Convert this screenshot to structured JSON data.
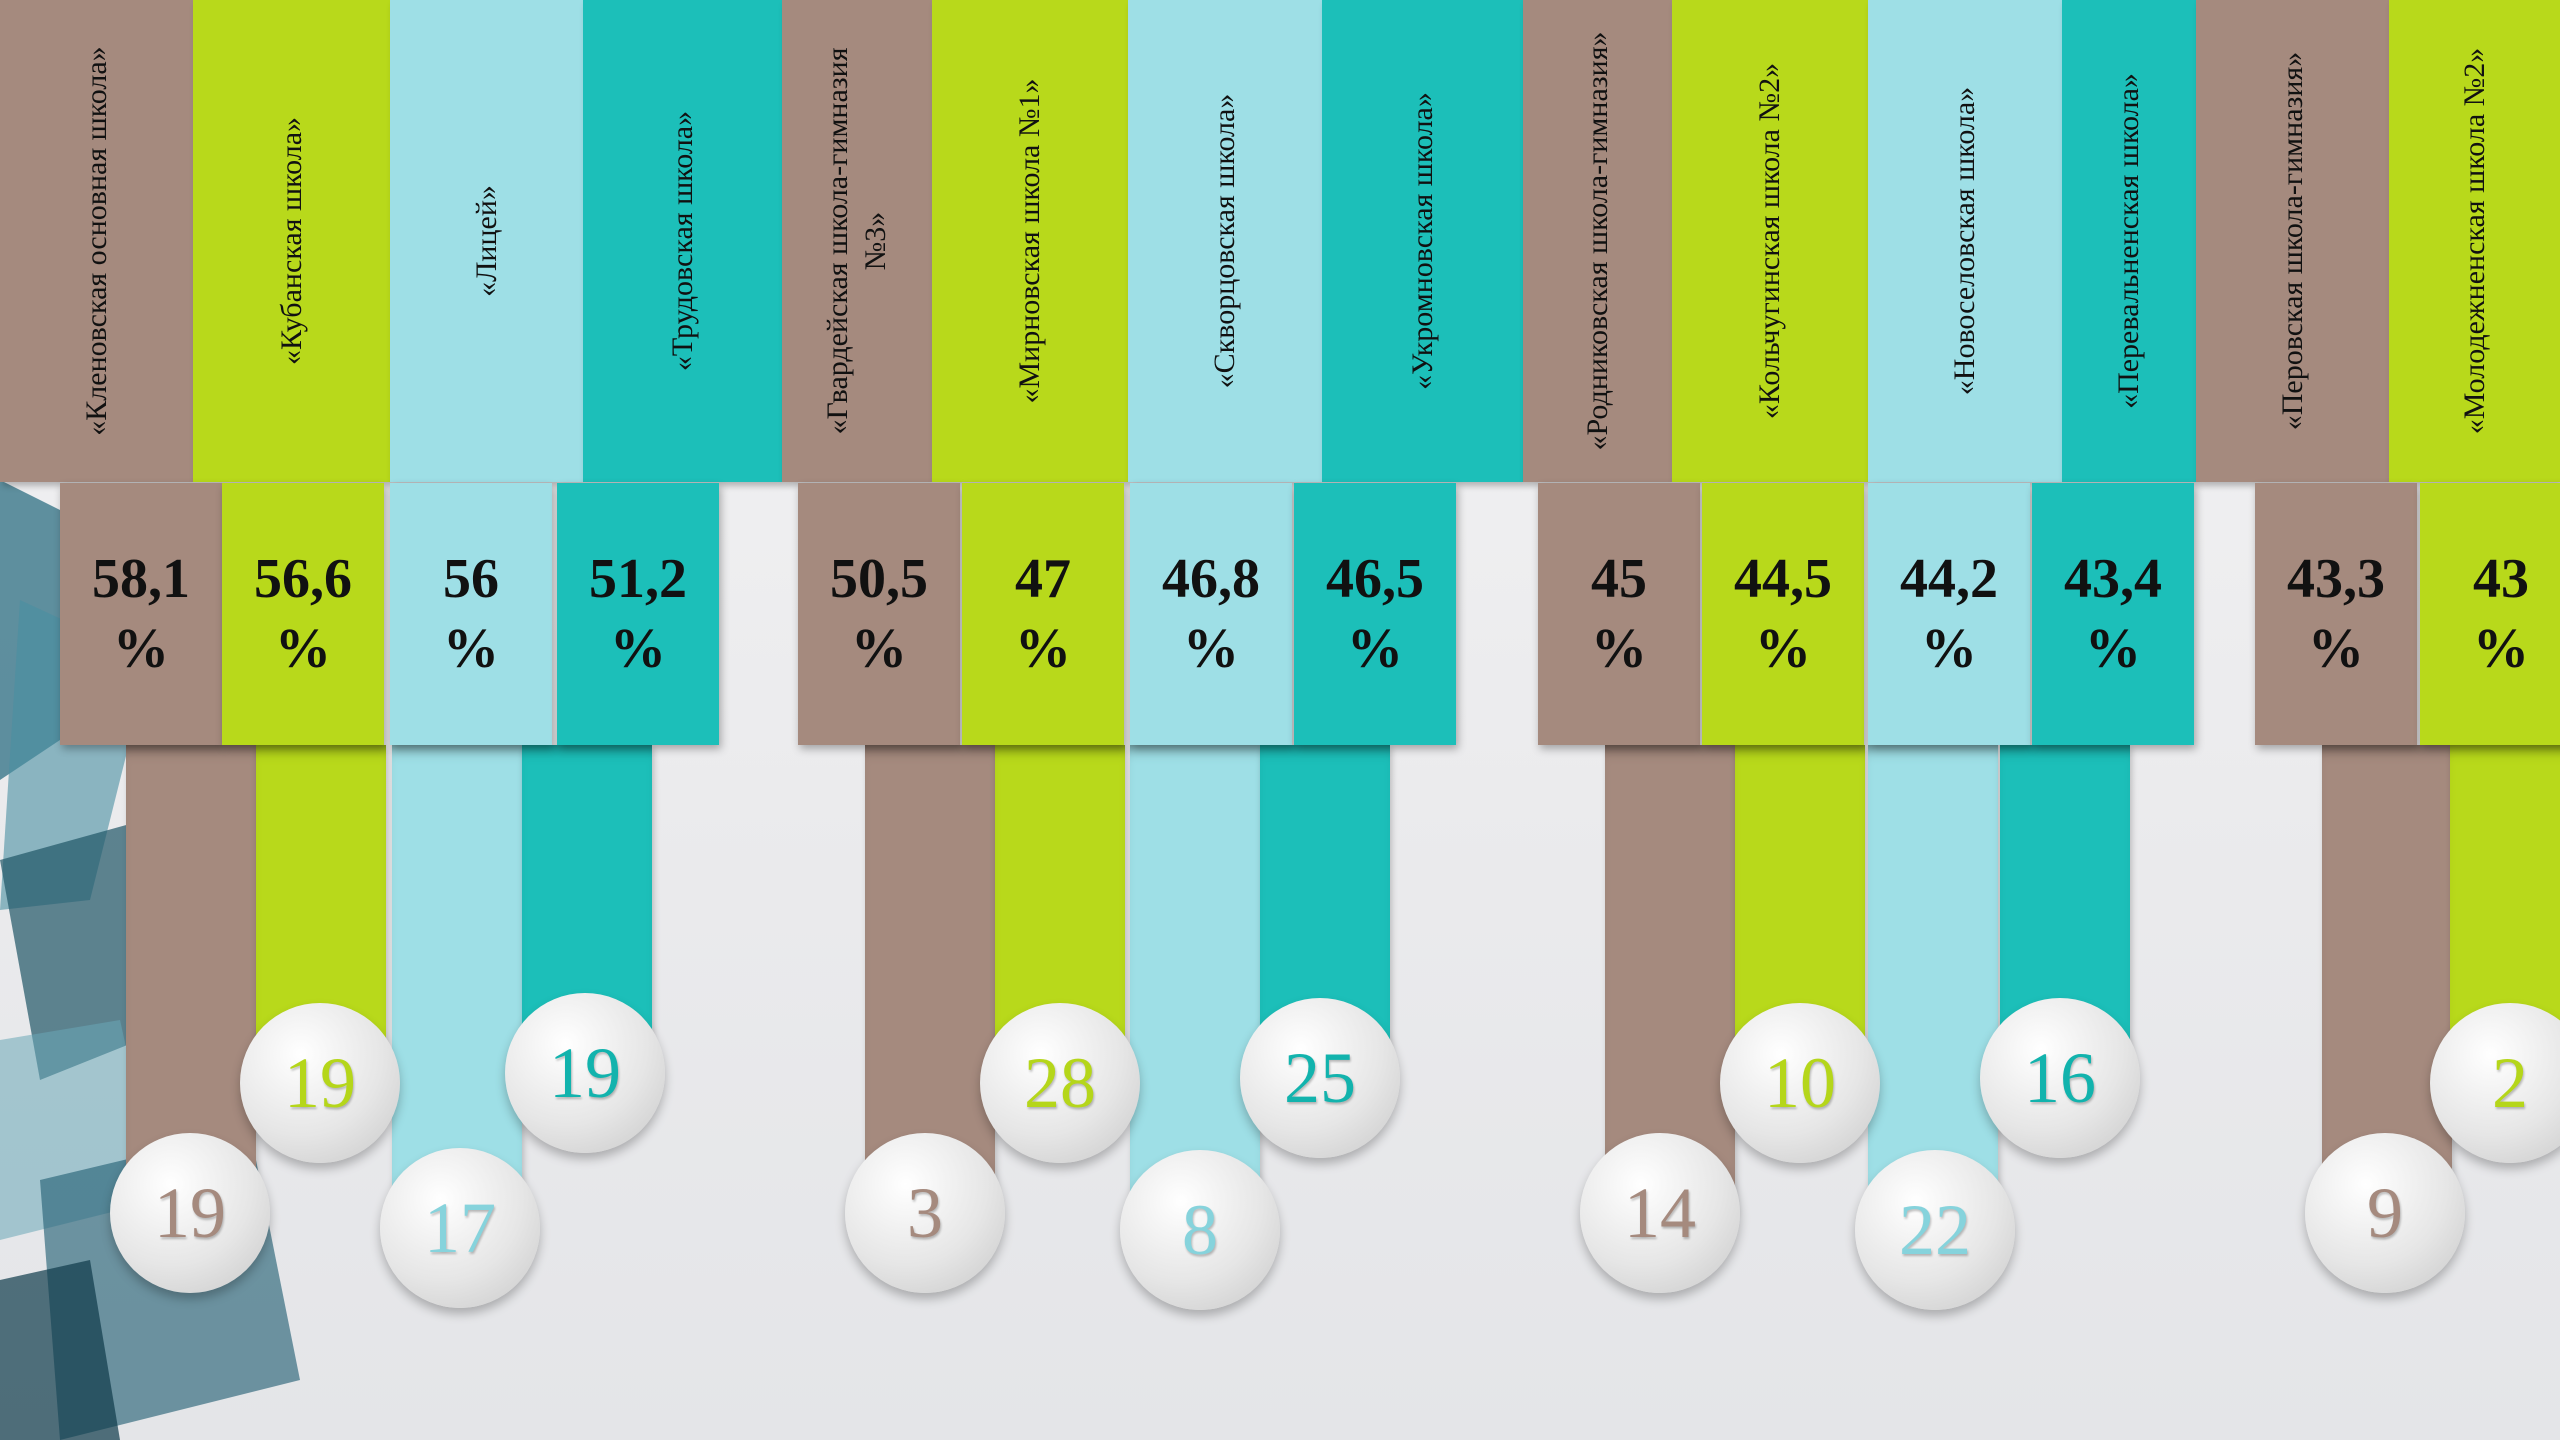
{
  "colors": {
    "brown": "#a58a7e",
    "lime": "#b8d91b",
    "light_blue": "#9edfe6",
    "teal": "#1cbfb9",
    "circle_text_brown": "#a58a7e",
    "circle_text_lime": "#b5d61a",
    "circle_text_light_blue": "#86d3dc",
    "circle_text_teal": "#12b3ad"
  },
  "chart_data": {
    "type": "bar",
    "title": "",
    "xlabel": "",
    "ylabel": "",
    "categories": [
      "«Кленовская основная школа»",
      "«Кубанская школа»",
      "«Лицей»",
      "«Трудовская школа»",
      "«Гвардейская школа-гимназия №3»",
      "«Мирновская школа №1»",
      "«Скворцовская школа»",
      "«Укромновская школа»",
      "«Родниковская школа-гимназия»",
      "«Кольчугинская школа №2»",
      "«Новоселовская школа»",
      "«Перевальненская школа»",
      "«Перовская школа-гимназия»",
      "«Молодежненская школа №2»"
    ],
    "series": [
      {
        "values": [
          58.1,
          56.6,
          56,
          51.2,
          50.5,
          47,
          46.8,
          46.5,
          45,
          44.5,
          44.2,
          43.4,
          43.3,
          43
        ],
        "labels": [
          "58,1 %",
          "56,6 %",
          "56 %",
          "51,2 %",
          "50,5 %",
          "47 %",
          "46,8 %",
          "46,5 %",
          "45 %",
          "44,5 %",
          "44,2 %",
          "43,4 %",
          "43,3 %",
          "43 %"
        ],
        "unit": "%"
      },
      {
        "values": [
          19,
          19,
          17,
          19,
          3,
          28,
          8,
          25,
          14,
          10,
          22,
          16,
          9,
          2
        ]
      }
    ],
    "color_cycle": [
      "brown",
      "lime",
      "light_blue",
      "teal"
    ]
  }
}
